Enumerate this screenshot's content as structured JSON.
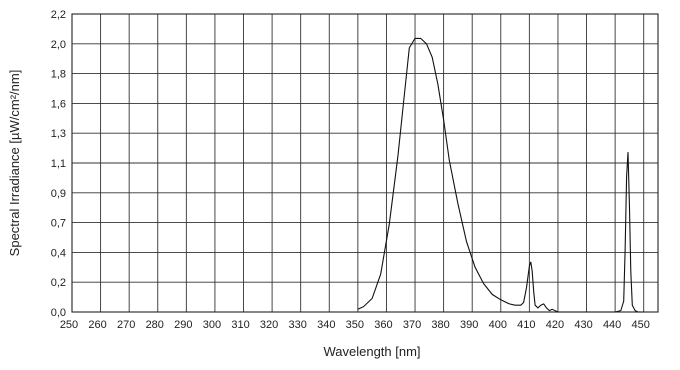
{
  "chart_data": {
    "type": "line",
    "xlabel": "Wavelength  [nm]",
    "ylabel": "Spectral Irradiance [µW/cm²/nm]",
    "xlim": [
      250,
      455
    ],
    "ylim": [
      0,
      2.2
    ],
    "x_ticks": [
      "250",
      "260",
      "270",
      "280",
      "290",
      "300",
      "310",
      "320",
      "330",
      "340",
      "350",
      "360",
      "370",
      "380",
      "390",
      "400",
      "410",
      "420",
      "430",
      "440",
      "450"
    ],
    "y_ticks": [
      "0,0",
      "0,2",
      "0,4",
      "0,7",
      "0,9",
      "1,1",
      "1,3",
      "1,6",
      "1,8",
      "2,0",
      "2,2"
    ],
    "grid": true,
    "series": [
      {
        "x": [
          350,
          352,
          355,
          358,
          361,
          364,
          366,
          368,
          370,
          371,
          372,
          374,
          376,
          378,
          380,
          382,
          385,
          388,
          391,
          394,
          397,
          400,
          403,
          405,
          407,
          408,
          409,
          410,
          410.5,
          411,
          411.5,
          412,
          413,
          414,
          415,
          416,
          417,
          418,
          420,
          425,
          430,
          435,
          440,
          442,
          443,
          443.5,
          444,
          444.5,
          445,
          445.5,
          446,
          447,
          448,
          450
        ],
        "y": [
          0.02,
          0.04,
          0.1,
          0.28,
          0.65,
          1.15,
          1.55,
          1.95,
          2.02,
          2.02,
          2.02,
          1.98,
          1.88,
          1.68,
          1.42,
          1.12,
          0.8,
          0.52,
          0.33,
          0.21,
          0.13,
          0.09,
          0.06,
          0.05,
          0.05,
          0.07,
          0.18,
          0.34,
          0.37,
          0.3,
          0.15,
          0.05,
          0.03,
          0.05,
          0.06,
          0.03,
          0.01,
          0.02,
          0.0,
          0.0,
          0.0,
          0.0,
          0.0,
          0.01,
          0.08,
          0.45,
          1.0,
          1.18,
          0.8,
          0.3,
          0.05,
          0.01,
          0.0,
          0.0
        ]
      }
    ]
  }
}
